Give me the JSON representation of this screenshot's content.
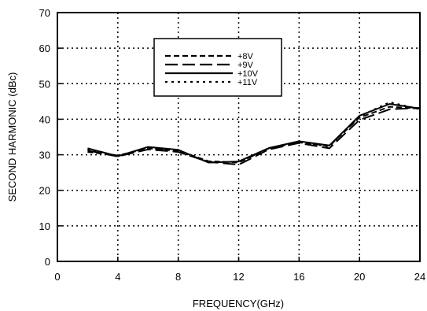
{
  "chart_data": {
    "type": "line",
    "xlabel": "FREQUENCY(GHz)",
    "ylabel": "SECOND HARMONIC (dBc)",
    "xlim": [
      0,
      24
    ],
    "ylim": [
      0,
      70
    ],
    "xticks": [
      0,
      4,
      8,
      12,
      16,
      20,
      24
    ],
    "yticks": [
      0,
      10,
      20,
      30,
      40,
      50,
      60,
      70
    ],
    "grid": true,
    "legend_position": "top-center",
    "x": [
      2,
      4,
      6,
      8,
      10,
      12,
      14,
      16,
      18,
      20,
      22,
      24
    ],
    "series": [
      {
        "name": "+8V",
        "dash": "short-dash",
        "values": [
          30.8,
          29.8,
          31.8,
          31.2,
          28.2,
          27.8,
          31.8,
          33.5,
          32.5,
          40.5,
          43.5,
          43.0
        ]
      },
      {
        "name": "+9V",
        "dash": "long-dash",
        "values": [
          31.2,
          29.5,
          31.5,
          30.8,
          28.0,
          27.2,
          31.5,
          33.3,
          31.8,
          39.8,
          42.8,
          43.2
        ]
      },
      {
        "name": "+10V",
        "dash": "solid",
        "values": [
          31.8,
          29.6,
          32.2,
          31.4,
          27.8,
          28.1,
          31.9,
          33.8,
          32.6,
          41.0,
          44.3,
          43.0
        ]
      },
      {
        "name": "+11V",
        "dash": "dotted",
        "values": [
          31.5,
          29.7,
          32.0,
          31.0,
          28.0,
          28.0,
          31.7,
          33.6,
          32.3,
          40.8,
          44.8,
          42.8
        ]
      }
    ]
  }
}
